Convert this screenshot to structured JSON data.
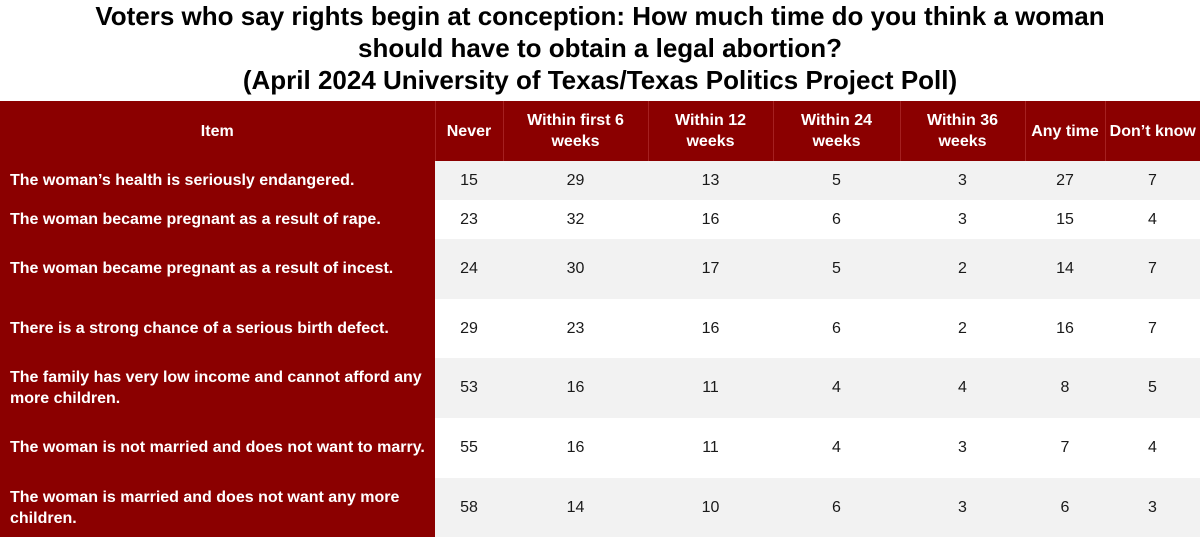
{
  "title_lines": [
    "Voters who say rights begin at conception: How much time do you think a woman",
    "should have to obtain a legal abortion?",
    "(April 2024 University of Texas/Texas Politics Project Poll)"
  ],
  "colors": {
    "header_bg": "#8b0000",
    "header_text": "#ffffff",
    "row_alt": "#f2f2f2",
    "row": "#ffffff"
  },
  "chart_data": {
    "type": "table",
    "title": "Voters who say rights begin at conception: How much time do you think a woman should have to obtain a legal abortion? (April 2024 University of Texas/Texas Politics Project Poll)",
    "columns": [
      "Item",
      "Never",
      "Within first 6 weeks",
      "Within 12 weeks",
      "Within 24 weeks",
      "Within 36 weeks",
      "Any time",
      "Don’t know"
    ],
    "rows": [
      {
        "item": "The woman’s health is seriously endangered.",
        "values": [
          15,
          29,
          13,
          5,
          3,
          27,
          7
        ]
      },
      {
        "item": "The woman became pregnant as a result of rape.",
        "values": [
          23,
          32,
          16,
          6,
          3,
          15,
          4
        ]
      },
      {
        "item": "The woman became pregnant as a result of incest.",
        "values": [
          24,
          30,
          17,
          5,
          2,
          14,
          7
        ]
      },
      {
        "item": "There is a strong chance of a serious birth defect.",
        "values": [
          29,
          23,
          16,
          6,
          2,
          16,
          7
        ]
      },
      {
        "item": "The family has very low income and cannot afford any more children.",
        "values": [
          53,
          16,
          11,
          4,
          4,
          8,
          5
        ]
      },
      {
        "item": "The woman is not married and does not want to marry.",
        "values": [
          55,
          16,
          11,
          4,
          3,
          7,
          4
        ]
      },
      {
        "item": "The woman is married and does not want any more children.",
        "values": [
          58,
          14,
          10,
          6,
          3,
          6,
          3
        ]
      }
    ]
  }
}
